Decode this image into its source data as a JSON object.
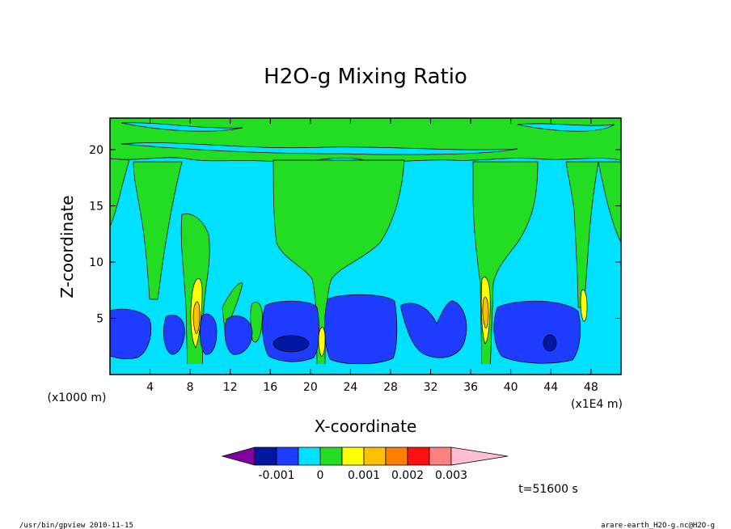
{
  "chart_data": {
    "type": "heatmap",
    "subtype": "filled-contour",
    "title": "H2O-g Mixing Ratio",
    "xlabel": "X-coordinate",
    "ylabel": "Z-coordinate",
    "x_unit_left": "(x1000 m)",
    "x_unit_right": "(x1E4 m)",
    "x_ticks": [
      4,
      8,
      12,
      16,
      20,
      24,
      28,
      32,
      36,
      40,
      44,
      48
    ],
    "y_ticks": [
      5,
      10,
      15,
      20
    ],
    "xlim": [
      0,
      51
    ],
    "ylim": [
      0,
      22.8
    ],
    "colorbar": {
      "colors": [
        "#8000a0",
        "#0018a0",
        "#1e3cff",
        "#00e0ff",
        "#22dd22",
        "#ffff00",
        "#ffc000",
        "#ff8000",
        "#ff1010",
        "#ff8080",
        "#ffbfd0"
      ],
      "labels": [
        "-0.001",
        "0",
        "0.001",
        "0.002",
        "0.003"
      ],
      "label_positions": [
        -0.001,
        0,
        0.001,
        0.002,
        0.003
      ]
    },
    "time_label": "t=51600 s",
    "regions": [
      {
        "level": "green",
        "description": "upper layer z>17 and plumes at x=6,9,21,37,47"
      },
      {
        "level": "cyan",
        "description": "mid layer z 7-17"
      },
      {
        "level": "blue",
        "description": "low layer z 1-6.5"
      }
    ]
  },
  "footer": {
    "left": "/usr/bin/gpview   2010-11-15",
    "right": "arare-earth_H2O-g.nc@H2O-g"
  }
}
